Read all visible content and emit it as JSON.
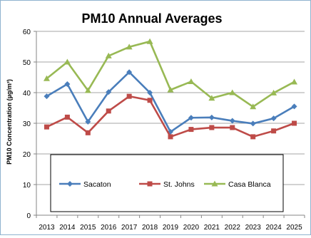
{
  "chart_data": {
    "type": "line",
    "title": "PM10 Annual Averages",
    "ylabel": "PM10 Concentration (µg/m³)",
    "xlabel": "",
    "categories": [
      "2013",
      "2014",
      "2015",
      "2016",
      "2017",
      "2018",
      "2019",
      "2020",
      "2021",
      "2022",
      "2023",
      "2024",
      "2025"
    ],
    "ylim": [
      0,
      60
    ],
    "yticks": [
      0,
      10,
      20,
      30,
      40,
      50,
      60
    ],
    "grid": "horizontal",
    "legend_position": "bottom-inside",
    "series": [
      {
        "name": "Sacaton",
        "color": "#4a7ebb",
        "marker": "diamond",
        "values": [
          38.8,
          42.8,
          30.5,
          40.2,
          46.7,
          40.0,
          27.2,
          31.8,
          31.9,
          30.8,
          29.9,
          31.6,
          35.5
        ]
      },
      {
        "name": "St. Johns",
        "color": "#be4b48",
        "marker": "square",
        "values": [
          28.8,
          32.0,
          26.9,
          34.0,
          38.8,
          37.5,
          25.6,
          28.0,
          28.6,
          28.6,
          25.6,
          27.5,
          30.0
        ]
      },
      {
        "name": "Casa Blanca",
        "color": "#98b954",
        "marker": "triangle",
        "values": [
          44.6,
          50.0,
          40.7,
          52.0,
          54.9,
          56.7,
          40.9,
          43.6,
          38.2,
          40.0,
          35.4,
          39.9,
          43.5
        ]
      }
    ]
  }
}
